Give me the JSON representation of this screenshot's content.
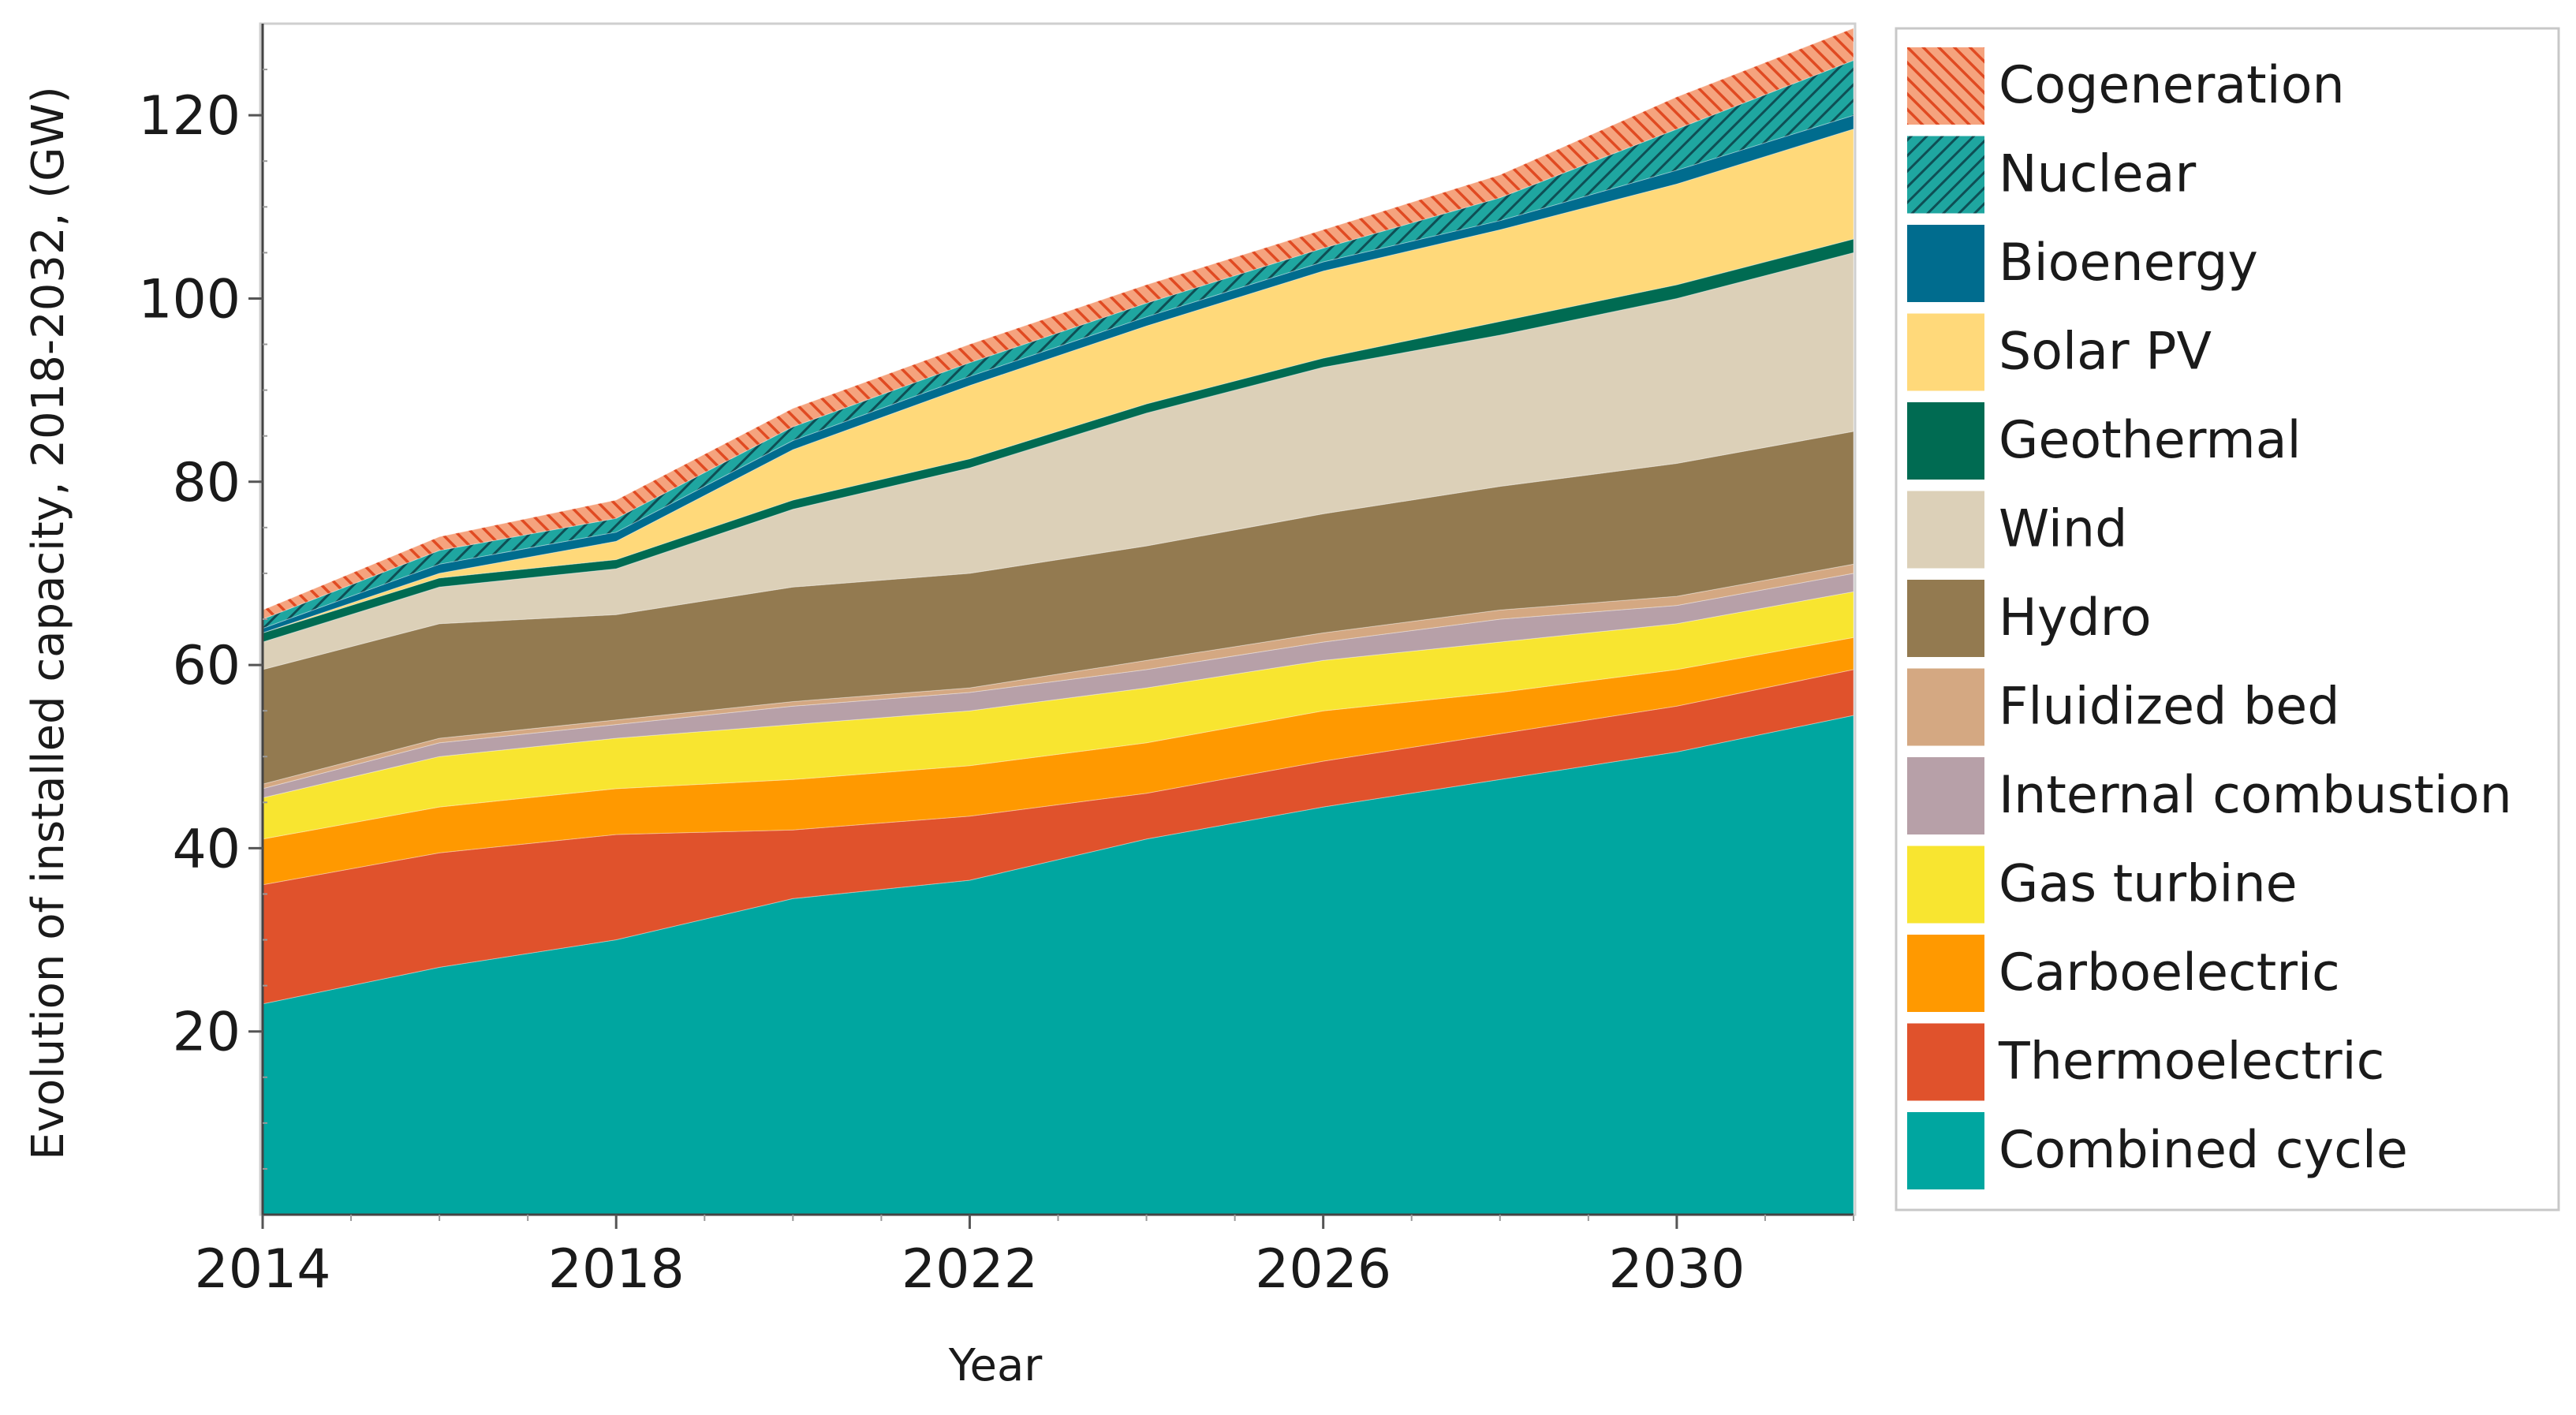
{
  "chart_data": {
    "type": "area",
    "stacked": true,
    "title": "",
    "xlabel": "Year",
    "ylabel": "Evolution of installed capacity, 2018-2032, (GW)",
    "xlim": [
      2014,
      2032
    ],
    "ylim": [
      0,
      130
    ],
    "x_ticks": [
      2014,
      2018,
      2022,
      2026,
      2030
    ],
    "y_ticks": [
      20,
      40,
      60,
      80,
      100,
      120
    ],
    "legend_position": "right",
    "x": [
      2014,
      2016,
      2018,
      2020,
      2022,
      2024,
      2026,
      2028,
      2030,
      2032
    ],
    "series": [
      {
        "name": "Combined cycle",
        "color": "#00A6A0",
        "pattern": "none",
        "values": [
          23.0,
          27.0,
          30.0,
          34.5,
          36.5,
          41.0,
          44.5,
          47.5,
          50.5,
          54.5
        ]
      },
      {
        "name": "Thermoelectric",
        "color": "#E0522C",
        "pattern": "none",
        "values": [
          13.0,
          12.5,
          11.5,
          7.5,
          7.0,
          5.0,
          5.0,
          5.0,
          5.0,
          5.0
        ]
      },
      {
        "name": "Carboelectric",
        "color": "#FF9900",
        "pattern": "none",
        "values": [
          5.0,
          5.0,
          5.0,
          5.5,
          5.5,
          5.5,
          5.5,
          4.5,
          4.0,
          3.5
        ]
      },
      {
        "name": "Gas turbine",
        "color": "#F8E530",
        "pattern": "none",
        "values": [
          4.5,
          5.5,
          5.5,
          6.0,
          6.0,
          6.0,
          5.5,
          5.5,
          5.0,
          5.0
        ]
      },
      {
        "name": "Internal combustion",
        "color": "#B7A0A8",
        "pattern": "none",
        "values": [
          1.0,
          1.5,
          1.5,
          2.0,
          2.0,
          2.0,
          2.0,
          2.5,
          2.0,
          2.0
        ]
      },
      {
        "name": "Fluidized bed",
        "color": "#D4A882",
        "pattern": "none",
        "values": [
          0.5,
          0.5,
          0.5,
          0.5,
          0.5,
          1.0,
          1.0,
          1.0,
          1.0,
          1.0
        ]
      },
      {
        "name": "Hydro",
        "color": "#937A50",
        "pattern": "none",
        "values": [
          12.5,
          12.5,
          11.5,
          12.5,
          12.5,
          12.5,
          13.0,
          13.5,
          14.5,
          14.5
        ]
      },
      {
        "name": "Wind",
        "color": "#DCD0B8",
        "pattern": "none",
        "values": [
          3.0,
          4.0,
          5.0,
          8.5,
          11.5,
          14.5,
          16.0,
          16.5,
          18.0,
          19.5
        ]
      },
      {
        "name": "Geothermal",
        "color": "#006B52",
        "pattern": "none",
        "values": [
          1.0,
          1.0,
          1.0,
          1.0,
          1.0,
          1.0,
          1.0,
          1.5,
          1.5,
          1.5
        ]
      },
      {
        "name": "Solar PV",
        "color": "#FFD97A",
        "pattern": "none",
        "values": [
          0.0,
          0.5,
          2.0,
          5.5,
          8.0,
          8.5,
          9.5,
          10.0,
          11.0,
          12.0
        ]
      },
      {
        "name": "Bioenergy",
        "color": "#006C8E",
        "pattern": "none",
        "values": [
          0.5,
          1.0,
          1.0,
          1.0,
          1.0,
          1.0,
          1.0,
          1.0,
          1.5,
          1.5
        ]
      },
      {
        "name": "Nuclear",
        "color": "#1B9B96",
        "pattern": "hatch",
        "values": [
          1.0,
          1.5,
          1.5,
          1.5,
          1.5,
          1.5,
          1.5,
          2.5,
          4.5,
          6.0
        ]
      },
      {
        "name": "Cogeneration",
        "color": "#E8552F",
        "pattern": "hatch",
        "values": [
          1.0,
          1.5,
          2.0,
          2.0,
          2.0,
          2.0,
          2.0,
          2.5,
          3.5,
          3.5
        ]
      }
    ],
    "legend": [
      "Cogeneration",
      "Nuclear",
      "Bioenergy",
      "Solar PV",
      "Geothermal",
      "Wind",
      "Hydro",
      "Fluidized bed",
      "Internal combustion",
      "Gas turbine",
      "Carboelectric",
      "Thermoelectric",
      "Combined cycle"
    ]
  }
}
